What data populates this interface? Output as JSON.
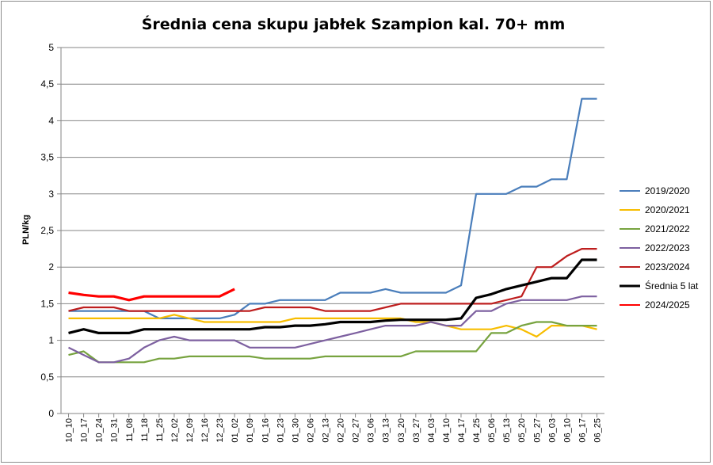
{
  "chart_data": {
    "type": "line",
    "title": "Średnia cena skupu jabłek Szampion kal. 70+ mm",
    "xlabel": "",
    "ylabel": "PLN/kg",
    "ylim": [
      0,
      5
    ],
    "yticks": [
      "0",
      "0,5",
      "1",
      "1,5",
      "2",
      "2,5",
      "3",
      "3,5",
      "4",
      "4,5",
      "5"
    ],
    "grid": "horizontal",
    "legend_position": "right",
    "categories": [
      "10_10",
      "10_17",
      "10_24",
      "10_31",
      "11_08",
      "11_18",
      "11_25",
      "12_02",
      "12_09",
      "12_16",
      "12_23",
      "01_02",
      "01_09",
      "01_16",
      "01_23",
      "01_30",
      "02_06",
      "02_13",
      "02_20",
      "02_27",
      "03_06",
      "03_13",
      "03_20",
      "03_27",
      "04_03",
      "04_10",
      "04_17",
      "04_25",
      "05_06",
      "05_13",
      "05_20",
      "05_27",
      "06_03",
      "06_10",
      "06_17",
      "06_25"
    ],
    "series": [
      {
        "name": "2019/2020",
        "color": "#4a7ebb",
        "values": [
          1.4,
          1.4,
          1.4,
          1.4,
          1.4,
          1.4,
          1.3,
          1.3,
          1.3,
          1.3,
          1.3,
          1.35,
          1.5,
          1.5,
          1.55,
          1.55,
          1.55,
          1.55,
          1.65,
          1.65,
          1.65,
          1.7,
          1.65,
          1.65,
          1.65,
          1.65,
          1.75,
          3.0,
          3.0,
          3.0,
          3.1,
          3.1,
          3.2,
          3.2,
          4.3,
          4.3
        ]
      },
      {
        "name": "2020/2021",
        "color": "#f7bd00",
        "values": [
          1.3,
          1.3,
          1.3,
          1.3,
          1.3,
          1.3,
          1.3,
          1.35,
          1.3,
          1.25,
          1.25,
          1.25,
          1.25,
          1.25,
          1.25,
          1.3,
          1.3,
          1.3,
          1.3,
          1.3,
          1.3,
          1.3,
          1.3,
          1.25,
          1.25,
          1.2,
          1.15,
          1.15,
          1.15,
          1.2,
          1.15,
          1.05,
          1.2,
          1.2,
          1.2,
          1.15
        ]
      },
      {
        "name": "2021/2022",
        "color": "#77a33f",
        "values": [
          0.8,
          0.85,
          0.7,
          0.7,
          0.7,
          0.7,
          0.75,
          0.75,
          0.78,
          0.78,
          0.78,
          0.78,
          0.78,
          0.75,
          0.75,
          0.75,
          0.75,
          0.78,
          0.78,
          0.78,
          0.78,
          0.78,
          0.78,
          0.85,
          0.85,
          0.85,
          0.85,
          0.85,
          1.1,
          1.1,
          1.2,
          1.25,
          1.25,
          1.2,
          1.2,
          1.2
        ]
      },
      {
        "name": "2022/2023",
        "color": "#7d60a0",
        "values": [
          0.9,
          0.8,
          0.7,
          0.7,
          0.75,
          0.9,
          1.0,
          1.05,
          1.0,
          1.0,
          1.0,
          1.0,
          0.9,
          0.9,
          0.9,
          0.9,
          0.95,
          1.0,
          1.05,
          1.1,
          1.15,
          1.2,
          1.2,
          1.2,
          1.25,
          1.2,
          1.2,
          1.4,
          1.4,
          1.5,
          1.55,
          1.55,
          1.55,
          1.55,
          1.6,
          1.6
        ]
      },
      {
        "name": "2023/2024",
        "color": "#be1e1e",
        "values": [
          1.4,
          1.45,
          1.45,
          1.45,
          1.4,
          1.4,
          1.4,
          1.4,
          1.4,
          1.4,
          1.4,
          1.4,
          1.4,
          1.45,
          1.45,
          1.45,
          1.45,
          1.4,
          1.4,
          1.4,
          1.4,
          1.45,
          1.5,
          1.5,
          1.5,
          1.5,
          1.5,
          1.5,
          1.5,
          1.55,
          1.6,
          2.0,
          2.0,
          2.15,
          2.25,
          2.25
        ]
      },
      {
        "name": "Średnia 5 lat",
        "color": "#000000",
        "values": [
          1.1,
          1.15,
          1.1,
          1.1,
          1.1,
          1.15,
          1.15,
          1.15,
          1.15,
          1.15,
          1.15,
          1.15,
          1.15,
          1.18,
          1.18,
          1.2,
          1.2,
          1.22,
          1.25,
          1.25,
          1.25,
          1.27,
          1.28,
          1.28,
          1.28,
          1.28,
          1.3,
          1.58,
          1.63,
          1.7,
          1.75,
          1.8,
          1.85,
          1.85,
          2.1,
          2.1
        ]
      },
      {
        "name": "2024/2025",
        "color": "#ff0000",
        "values": [
          1.65,
          1.62,
          1.6,
          1.6,
          1.55,
          1.6,
          1.6,
          1.6,
          1.6,
          1.6,
          1.6,
          1.7,
          null,
          null,
          null,
          null,
          null,
          null,
          null,
          null,
          null,
          null,
          null,
          null,
          null,
          null,
          null,
          null,
          null,
          null,
          null,
          null,
          null,
          null,
          null,
          null
        ]
      }
    ]
  }
}
